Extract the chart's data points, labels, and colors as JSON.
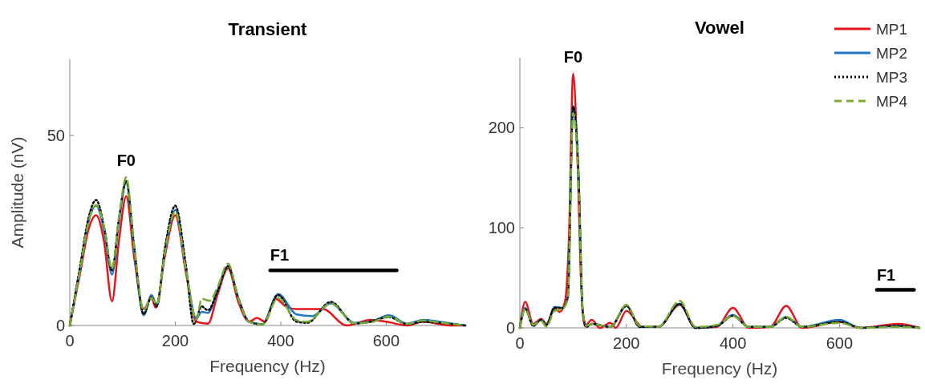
{
  "chart_data": [
    {
      "type": "line",
      "title": "Transient",
      "xlabel": "Frequency (Hz)",
      "ylabel": "Amplitude (nV)",
      "xlim": [
        0,
        750
      ],
      "xticks": [
        0,
        200,
        400,
        600
      ],
      "ylim": [
        0,
        70
      ],
      "yticks": [
        0,
        50
      ],
      "grid": false,
      "legend": false,
      "marker": "none",
      "annotations": [
        "F0",
        {
          "text": "F1",
          "x": 380,
          "y": 14.5
        }
      ],
      "series": [
        {
          "color": "#e8141c",
          "line_style": "solid",
          "x": [
            0,
            20,
            35,
            50,
            65,
            80,
            93,
            107,
            122,
            140,
            155,
            163,
            180,
            200,
            220,
            240,
            262,
            280,
            300,
            320,
            340,
            355,
            370,
            390,
            410,
            430,
            480,
            525,
            570,
            600,
            640,
            670,
            720,
            750
          ],
          "values": [
            0,
            14,
            25,
            29,
            22,
            6.3,
            22,
            34,
            18,
            4.3,
            7.2,
            4.7,
            18,
            29,
            14,
            1,
            0.5,
            8,
            15,
            6,
            1,
            2,
            1,
            7,
            5,
            4.3,
            4.3,
            0,
            1.5,
            1,
            0,
            1,
            0,
            0
          ]
        },
        {
          "color": "#1f77c4",
          "line_style": "solid",
          "x": [
            0,
            20,
            35,
            50,
            65,
            80,
            93,
            107,
            122,
            140,
            155,
            165,
            180,
            200,
            220,
            240,
            250,
            262,
            280,
            300,
            320,
            340,
            365,
            395,
            430,
            460,
            495,
            540,
            570,
            605,
            640,
            670,
            700,
            750
          ],
          "values": [
            0,
            15,
            27,
            31.5,
            25,
            13.4,
            27,
            37.7,
            20,
            2.7,
            8,
            5.4,
            19,
            30.4,
            15,
            1.8,
            3.6,
            3.3,
            9,
            15.6,
            7,
            1,
            0.3,
            8.3,
            2.9,
            2.5,
            5.8,
            0.7,
            1,
            2.7,
            0.5,
            1.5,
            1,
            0
          ]
        },
        {
          "color": "#000000",
          "line_style": "dotted",
          "x": [
            0,
            20,
            35,
            50,
            65,
            80,
            93,
            107,
            122,
            140,
            155,
            165,
            180,
            200,
            220,
            235,
            250,
            262,
            280,
            300,
            320,
            340,
            365,
            395,
            430,
            450,
            495,
            540,
            570,
            605,
            640,
            670,
            700,
            750
          ],
          "values": [
            0,
            16,
            28,
            33,
            26,
            14.5,
            28,
            38,
            21,
            3,
            7.5,
            5,
            20,
            31.5,
            16,
            0.4,
            5,
            4,
            9,
            15.6,
            7,
            1,
            0.3,
            8,
            1,
            0.7,
            6.2,
            0.5,
            1,
            2.2,
            0.3,
            1,
            0.7,
            0
          ]
        },
        {
          "color": "#77ac30",
          "line_style": "dashed",
          "x": [
            0,
            20,
            35,
            50,
            65,
            80,
            93,
            107,
            122,
            140,
            155,
            165,
            180,
            200,
            220,
            240,
            250,
            265,
            280,
            300,
            320,
            340,
            365,
            395,
            430,
            450,
            495,
            540,
            570,
            605,
            640,
            670,
            700,
            750
          ],
          "values": [
            0,
            15,
            27,
            31.7,
            26,
            14.9,
            28,
            39,
            21,
            4,
            7.3,
            5.5,
            19,
            30,
            15,
            1.5,
            7,
            6.5,
            10,
            16.3,
            7,
            1,
            0.3,
            7.2,
            1.4,
            1,
            5.8,
            0.6,
            0.8,
            2.3,
            0.4,
            1.3,
            0.8,
            0
          ]
        },
        {
          "color": "#000000",
          "line_style": "solid",
          "x": [
            380,
            620
          ],
          "values": [
            14.5,
            14.5
          ]
        }
      ]
    },
    {
      "type": "line",
      "title": "Vowel",
      "xlabel": "Frequency (Hz)",
      "xlim": [
        0,
        750
      ],
      "xticks": [
        0,
        200,
        400,
        600
      ],
      "ylim": [
        0,
        270
      ],
      "yticks": [
        0,
        100,
        200
      ],
      "grid": false,
      "legend": "top right",
      "marker": "none",
      "annotations": [
        "F0",
        {
          "text": "F1",
          "x": 670,
          "y": 38
        }
      ],
      "series": [
        {
          "name": "MP1",
          "color": "#e8141c",
          "line_style": "solid",
          "x": [
            0,
            10,
            25,
            40,
            50,
            65,
            75,
            85,
            92,
            100,
            108,
            115,
            122,
            135,
            150,
            170,
            180,
            200,
            230,
            260,
            300,
            330,
            370,
            400,
            430,
            470,
            500,
            530,
            600,
            640,
            710,
            750
          ],
          "values": [
            0,
            26,
            4,
            9,
            4,
            19,
            16,
            27,
            87,
            254,
            170,
            45,
            2,
            8,
            0,
            5,
            0,
            17,
            1,
            1,
            23,
            0,
            1,
            20,
            0,
            1,
            22,
            0,
            6,
            0,
            4,
            0
          ]
        },
        {
          "name": "MP2",
          "color": "#1f77c4",
          "line_style": "solid",
          "x": [
            0,
            10,
            25,
            40,
            50,
            65,
            80,
            90,
            100,
            110,
            118,
            125,
            135,
            170,
            200,
            225,
            260,
            300,
            330,
            370,
            400,
            430,
            470,
            500,
            530,
            600,
            640,
            710,
            750
          ],
          "values": [
            0,
            20,
            2,
            8,
            3,
            21,
            20,
            31,
            222,
            156,
            17,
            1,
            4,
            1,
            22,
            1,
            1,
            24,
            0,
            2,
            13,
            1,
            1,
            11,
            1,
            8,
            0,
            2,
            0
          ]
        },
        {
          "name": "MP3",
          "color": "#000000",
          "line_style": "dotted",
          "x": [
            0,
            10,
            25,
            40,
            50,
            65,
            80,
            90,
            100,
            110,
            118,
            125,
            135,
            170,
            200,
            225,
            260,
            300,
            330,
            370,
            400,
            430,
            470,
            500,
            530,
            600,
            640,
            710,
            750
          ],
          "values": [
            0,
            19,
            2,
            8,
            3,
            20,
            20,
            30,
            221,
            155,
            16,
            1,
            4,
            1,
            22,
            1,
            1,
            24,
            0,
            2,
            12,
            1,
            1,
            10,
            1,
            6,
            0,
            2,
            0
          ]
        },
        {
          "name": "MP4",
          "color": "#77ac30",
          "line_style": "dashed",
          "x": [
            0,
            10,
            25,
            40,
            50,
            65,
            80,
            90,
            100,
            110,
            118,
            125,
            135,
            170,
            200,
            225,
            260,
            300,
            330,
            370,
            400,
            430,
            470,
            500,
            530,
            600,
            640,
            710,
            750
          ],
          "values": [
            0,
            19,
            3,
            7,
            1,
            17,
            19,
            29,
            215,
            150,
            18,
            2,
            4,
            1,
            23,
            2,
            1,
            27,
            1,
            3,
            12,
            1,
            1,
            11,
            1,
            5,
            0,
            1,
            0
          ]
        },
        {
          "color": "#000000",
          "line_style": "solid",
          "x": [
            670,
            740
          ],
          "values": [
            38,
            38
          ]
        }
      ]
    }
  ]
}
